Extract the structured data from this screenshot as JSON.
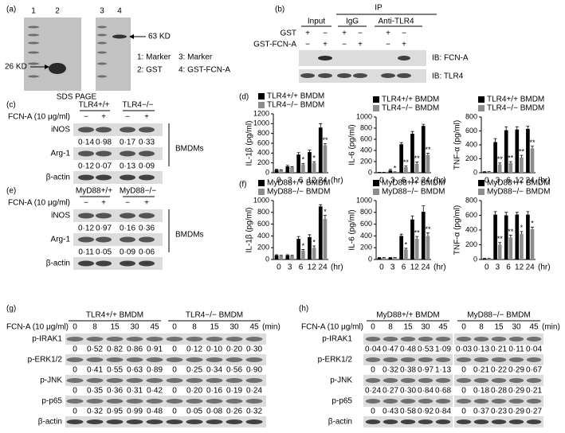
{
  "panels": {
    "a": {
      "label": "(a)",
      "lanes": [
        "1",
        "2",
        "3",
        "4"
      ],
      "size_markers": [
        "26 KD",
        "63 KD"
      ],
      "key": [
        "1: Marker",
        "3: Marker",
        "2: GST",
        "4: GST-FCN-A"
      ],
      "caption": "SDS PAGE"
    },
    "b": {
      "label": "(b)",
      "ip": "IP",
      "groups": [
        "Input",
        "IgG",
        "Anti-TLR4"
      ],
      "treatments": [
        {
          "name": "GST",
          "signs": [
            "+",
            "−",
            "+",
            "−",
            "+",
            "−"
          ]
        },
        {
          "name": "GST-FCN-A",
          "signs": [
            "−",
            "+",
            "−",
            "+",
            "−",
            "+"
          ]
        }
      ],
      "blots": [
        "IB: FCN-A",
        "IB: TLR4"
      ]
    },
    "c": {
      "label": "(c)",
      "genotypes": [
        "TLR4+/+",
        "TLR4−/−"
      ],
      "treatment": "FCN-A (10 μg/ml)",
      "signs": [
        "−",
        "+",
        "−",
        "+"
      ],
      "rows": [
        {
          "name": "iNOS",
          "values": [
            "0·14",
            "0·98",
            "0·17",
            "0·33"
          ]
        },
        {
          "name": "Arg-1",
          "values": [
            "0·12",
            "0·07",
            "0·13",
            "0·09"
          ]
        }
      ],
      "loading_control": "β-actin",
      "cells": "BMDMs"
    },
    "d": {
      "label": "(d)"
    },
    "e": {
      "label": "(e)",
      "genotypes": [
        "MyD88+/+",
        "MyD88−/−"
      ],
      "treatment": "FCN-A (10 μg/ml)",
      "signs": [
        "−",
        "+",
        "−",
        "+"
      ],
      "rows": [
        {
          "name": "iNOS",
          "values": [
            "0·12",
            "0·97",
            "0·16",
            "0·36"
          ]
        },
        {
          "name": "Arg-1",
          "values": [
            "0·11",
            "0·05",
            "0·09",
            "0·06"
          ]
        }
      ],
      "loading_control": "β-actin",
      "cells": "BMDMs"
    },
    "f": {
      "label": "(f)"
    },
    "g": {
      "label": "(g)",
      "groups": [
        "TLR4+/+ BMDM",
        "TLR4−/− BMDM"
      ],
      "treatment": "FCN-A (10 μg/ml)",
      "times": [
        "0",
        "8",
        "15",
        "30",
        "45"
      ],
      "unit": "(min)",
      "rows": [
        {
          "name": "p-IRAK1",
          "values": [
            "0",
            "0·52",
            "0·82",
            "0·86",
            "0·91",
            "0",
            "0·12",
            "0·10",
            "0·20",
            "0·30"
          ]
        },
        {
          "name": "p-ERK1/2",
          "values": [
            "0",
            "0·41",
            "0·55",
            "0·63",
            "0·89",
            "0",
            "0·25",
            "0·34",
            "0·56",
            "0·90"
          ]
        },
        {
          "name": "p-JNK",
          "values": [
            "0",
            "0·35",
            "0·36",
            "0·31",
            "0·42",
            "0",
            "0·20",
            "0·16",
            "0·19",
            "0·24"
          ]
        },
        {
          "name": "p-p65",
          "values": [
            "0",
            "0·32",
            "0·95",
            "0·99",
            "0·48",
            "0",
            "0·05",
            "0·08",
            "0·26",
            "0·32"
          ]
        }
      ],
      "loading_control": "β-actin"
    },
    "h": {
      "label": "(h)",
      "groups": [
        "MyD88+/+ BMDM",
        "MyD88−/− BMDM"
      ],
      "treatment": "FCN-A (10 μg/ml)",
      "times": [
        "0",
        "8",
        "15",
        "30",
        "45"
      ],
      "unit": "(min)",
      "rows": [
        {
          "name": "p-IRAK1",
          "values": [
            "0·04",
            "0·47",
            "0·48",
            "0·53",
            "1·09",
            "0·03",
            "0·13",
            "0·21",
            "0·11",
            "0·04"
          ]
        },
        {
          "name": "p-ERK1/2",
          "values": [
            "0",
            "0·32",
            "0·38",
            "0·97",
            "1·13",
            "0",
            "0·21",
            "0·22",
            "0·29",
            "0·67"
          ]
        },
        {
          "name": "p-JNK",
          "values": [
            "0·24",
            "0·27",
            "0·30",
            "0·84",
            "0·68",
            "0",
            "0·18",
            "0·28",
            "0·29",
            "0·21"
          ]
        },
        {
          "name": "p-p65",
          "values": [
            "0",
            "0·43",
            "0·58",
            "0·92",
            "0·84",
            "0",
            "0·37",
            "0·23",
            "0·29",
            "0·27"
          ]
        }
      ],
      "loading_control": "β-actin"
    }
  },
  "chart_data": [
    {
      "type": "bar",
      "ylabel": "IL-1β (pg/ml)",
      "xlabel": "(hr)",
      "categories": [
        "0",
        "3",
        "6",
        "12",
        "24"
      ],
      "ylim": [
        0,
        1200
      ],
      "yticks": [
        0,
        200,
        400,
        600,
        800,
        1000,
        1200
      ],
      "series": [
        {
          "name": "TLR4+/+ BMDM",
          "color": "#000000",
          "values": [
            60,
            130,
            370,
            420,
            920
          ],
          "errors": [
            10,
            20,
            40,
            40,
            80
          ]
        },
        {
          "name": "TLR4−/− BMDM",
          "color": "#8c8c8c",
          "values": [
            50,
            110,
            170,
            200,
            560
          ],
          "errors": [
            10,
            15,
            20,
            25,
            30
          ],
          "significance": [
            null,
            null,
            "*",
            "*",
            "**"
          ]
        }
      ]
    },
    {
      "type": "bar",
      "ylabel": "IL-6 (pg/ml)",
      "xlabel": "(hr)",
      "categories": [
        "0",
        "3",
        "6",
        "12",
        "24"
      ],
      "ylim": [
        0,
        1000
      ],
      "yticks": [
        0,
        200,
        400,
        600,
        800,
        1000
      ],
      "series": [
        {
          "name": "TLR4+/+ BMDM",
          "color": "#000000",
          "values": [
            5,
            40,
            510,
            700,
            840
          ],
          "errors": [
            3,
            20,
            30,
            40,
            30
          ]
        },
        {
          "name": "TLR4−/− BMDM",
          "color": "#8c8c8c",
          "values": [
            5,
            10,
            100,
            160,
            320
          ],
          "errors": [
            3,
            5,
            20,
            30,
            30
          ],
          "significance": [
            null,
            "*",
            "**",
            "**",
            "**"
          ]
        }
      ]
    },
    {
      "type": "bar",
      "ylabel": "TNF-α (pg/ml)",
      "xlabel": "(hr)",
      "categories": [
        "0",
        "3",
        "6",
        "12",
        "24"
      ],
      "ylim": [
        0,
        800
      ],
      "yticks": [
        0,
        200,
        400,
        600,
        800
      ],
      "series": [
        {
          "name": "TLR4+/+ BMDM",
          "color": "#000000",
          "values": [
            10,
            440,
            610,
            620,
            630
          ],
          "errors": [
            5,
            50,
            50,
            40,
            40
          ]
        },
        {
          "name": "TLR4−/− BMDM",
          "color": "#8c8c8c",
          "values": [
            10,
            120,
            140,
            220,
            350
          ],
          "errors": [
            5,
            20,
            20,
            30,
            30
          ],
          "significance": [
            null,
            "**",
            "**",
            "**",
            "**"
          ]
        }
      ]
    },
    {
      "type": "bar",
      "ylabel": "IL-1β (pg/ml)",
      "xlabel": "(hr)",
      "categories": [
        "0",
        "3",
        "6",
        "12",
        "24"
      ],
      "ylim": [
        0,
        1000
      ],
      "yticks": [
        0,
        200,
        400,
        600,
        800,
        1000
      ],
      "series": [
        {
          "name": "MyD88+/+ BMDM",
          "color": "#000000",
          "values": [
            70,
            70,
            350,
            380,
            900
          ],
          "errors": [
            10,
            10,
            40,
            40,
            30
          ]
        },
        {
          "name": "MyD88−/− BMDM",
          "color": "#8c8c8c",
          "values": [
            60,
            60,
            150,
            200,
            690
          ],
          "errors": [
            10,
            10,
            20,
            30,
            60
          ],
          "significance": [
            null,
            null,
            "*",
            "*",
            "*"
          ]
        }
      ]
    },
    {
      "type": "bar",
      "ylabel": "IL-6 (pg/ml)",
      "xlabel": "(hr)",
      "categories": [
        "0",
        "3",
        "6",
        "12",
        "24"
      ],
      "ylim": [
        0,
        1000
      ],
      "yticks": [
        0,
        200,
        400,
        600,
        800,
        1000
      ],
      "series": [
        {
          "name": "MyD88+/+ BMDM",
          "color": "#000000",
          "values": [
            30,
            30,
            400,
            680,
            810
          ],
          "errors": [
            5,
            5,
            30,
            60,
            100
          ]
        },
        {
          "name": "MyD88−/− BMDM",
          "color": "#8c8c8c",
          "values": [
            30,
            30,
            170,
            350,
            400
          ],
          "errors": [
            5,
            5,
            20,
            40,
            50
          ],
          "significance": [
            null,
            null,
            "*",
            "**",
            "**"
          ]
        }
      ]
    },
    {
      "type": "bar",
      "ylabel": "TNF-α (pg/ml)",
      "xlabel": "(hr)",
      "categories": [
        "0",
        "3",
        "6",
        "12",
        "24"
      ],
      "ylim": [
        0,
        800
      ],
      "yticks": [
        0,
        200,
        400,
        600,
        800
      ],
      "series": [
        {
          "name": "MyD88+/+ BMDM",
          "color": "#000000",
          "values": [
            10,
            610,
            600,
            610,
            610
          ],
          "errors": [
            5,
            40,
            40,
            30,
            40
          ]
        },
        {
          "name": "MyD88−/− BMDM",
          "color": "#8c8c8c",
          "values": [
            10,
            200,
            300,
            350,
            410
          ],
          "errors": [
            5,
            30,
            30,
            30,
            30
          ],
          "significance": [
            null,
            "**",
            "**",
            "*",
            "*"
          ]
        }
      ]
    }
  ]
}
